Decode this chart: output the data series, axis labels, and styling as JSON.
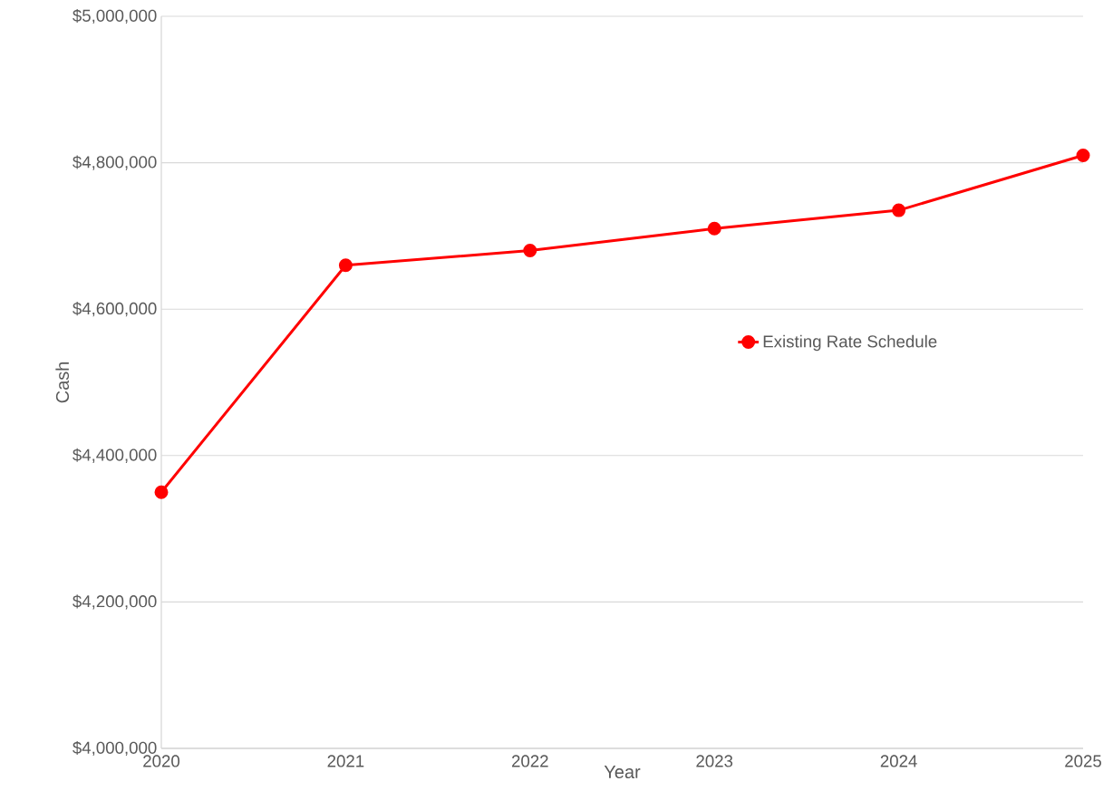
{
  "chart_data": {
    "type": "line",
    "xlabel": "Year",
    "ylabel": "Cash",
    "x": [
      2020,
      2021,
      2022,
      2023,
      2024,
      2025
    ],
    "series": [
      {
        "name": "Existing Rate Schedule",
        "color": "#ff0000",
        "values": [
          4350000,
          4660000,
          4680000,
          4710000,
          4735000,
          4810000
        ]
      }
    ],
    "xlim": [
      2020,
      2025
    ],
    "xticks": [
      2020,
      2021,
      2022,
      2023,
      2024,
      2025
    ],
    "ylim": [
      4000000,
      5000000
    ],
    "yticks": [
      {
        "value": 4000000,
        "label": "$4,000,000"
      },
      {
        "value": 4200000,
        "label": "$4,200,000"
      },
      {
        "value": 4400000,
        "label": "$4,400,000"
      },
      {
        "value": 4600000,
        "label": "$4,600,000"
      },
      {
        "value": 4800000,
        "label": "$4,800,000"
      },
      {
        "value": 5000000,
        "label": "$5,000,000"
      }
    ],
    "grid": "y",
    "legend": "right",
    "marker": "circle",
    "line_style": "solid"
  }
}
